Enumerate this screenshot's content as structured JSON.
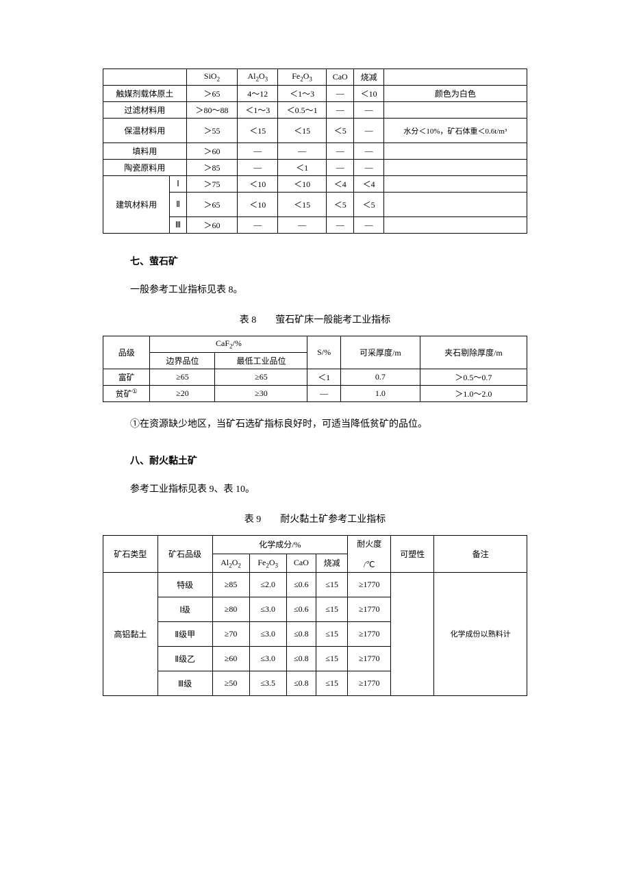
{
  "table7": {
    "header": [
      "SiO",
      "Al",
      "O",
      "Fe",
      "O",
      "CaO",
      "烧减"
    ],
    "sio2_sub": "2",
    "al2o3_a": "2",
    "al2o3_b": "3",
    "fe2o3_a": "2",
    "fe2o3_b": "3",
    "h_sio2": "SiO",
    "h_al2o3": "Al",
    "h_fe2o3": "Fe",
    "h_cao": "CaO",
    "h_shaojian": "烧减",
    "row1_label": "触媒剂载体原土",
    "r1_sio2": "＞65",
    "r1_al2o3": "4～12",
    "r1_fe2o3": "＜1～3",
    "r1_cao": "—",
    "r1_sj": "＜10",
    "r1_note": "颜色为白色",
    "row2_label": "过滤材料用",
    "r2_sio2": "＞80～88",
    "r2_al2o3": "＜1～3",
    "r2_fe2o3": "＜0.5～1",
    "r2_cao": "—",
    "r2_sj": "—",
    "r2_note": "",
    "row3_label": "保温材料用",
    "r3_sio2": "＞55",
    "r3_al2o3": "＜15",
    "r3_fe2o3": "＜15",
    "r3_cao": "＜5",
    "r3_sj": "—",
    "r3_note": "水分＜10%，矿石体重＜0.6t/m³",
    "row4_label": "填料用",
    "r4_sio2": "＞60",
    "r4_al2o3": "—",
    "r4_fe2o3": "—",
    "r4_cao": "—",
    "r4_sj": "—",
    "r4_note": "",
    "row5_label": "陶瓷原料用",
    "r5_sio2": "＞85",
    "r5_al2o3": "—",
    "r5_fe2o3": "＜1",
    "r5_cao": "—",
    "r5_sj": "—",
    "r5_note": "",
    "row6_label": "建筑材料用",
    "r6a_g": "Ⅰ",
    "r6a_sio2": "＞75",
    "r6a_al2o3": "＜10",
    "r6a_fe2o3": "＜10",
    "r6a_cao": "＜4",
    "r6a_sj": "＜4",
    "r6a_note": "",
    "r6b_g": "Ⅱ",
    "r6b_sio2": "＞65",
    "r6b_al2o3": "＜10",
    "r6b_fe2o3": "＜15",
    "r6b_cao": "＜5",
    "r6b_sj": "＜5",
    "r6b_note": "",
    "r6c_g": "Ⅲ",
    "r6c_sio2": "＞60",
    "r6c_al2o3": "—",
    "r6c_fe2o3": "—",
    "r6c_cao": "—",
    "r6c_sj": "—",
    "r6c_note": ""
  },
  "section7_heading": "七、萤石矿",
  "section7_body": "一般参考工业指标见表 8。",
  "table8_caption": "表 8　　萤石矿床一般能考工业指标",
  "table8": {
    "h_grade": "品级",
    "h_caf2": "CaF",
    "caf2_sub": "2",
    "h_pct": "/%",
    "h_bjpw": "边界品位",
    "h_zdpw": "最低工业品位",
    "h_s": "S/%",
    "h_kchd": "可采厚度/m",
    "h_jstchd": "夹石剔除厚度/m",
    "r1_g": "富矿",
    "r1_bj": "≥65",
    "r1_zd": "≥65",
    "r1_s": "＜1",
    "r1_kc": "0.7",
    "r1_js": "＞0.5～0.7",
    "r2_g": "贫矿",
    "r2_sup": "①",
    "r2_bj": "≥20",
    "r2_zd": "≥30",
    "r2_s": "—",
    "r2_kc": "1.0",
    "r2_js": "＞1.0～2.0"
  },
  "note1": "①在资源缺少地区，当矿石选矿指标良好时，可适当降低贫矿的品位。",
  "section8_heading": "八、耐火黏土矿",
  "section8_body": "参考工业指标见表 9、表 10。",
  "table9_caption": "表 9　　耐火黏土矿参考工业指标",
  "table9": {
    "h_type": "矿石类型",
    "h_grade": "矿石品级",
    "h_chem": "化学成分/%",
    "h_al2o2": "Al",
    "al2o2_a": "2",
    "al2o2_b": "2",
    "h_fe2o3": "Fe",
    "fe2o3_a": "2",
    "fe2o3_b": "3",
    "h_cao": "CaO",
    "h_sj": "烧减",
    "h_nhd": "耐火度",
    "h_nhd_unit": "/℃",
    "h_ksx": "可塑性",
    "h_bz": "备注",
    "type1": "高铝黏土",
    "bz1": "化学成份以熟料计",
    "g1": "特级",
    "g1_al": "≥85",
    "g1_fe": "≤2.0",
    "g1_ca": "≤0.6",
    "g1_sj": "≤15",
    "g1_nhd": "≥1770",
    "g2": "Ⅰ级",
    "g2_al": "≥80",
    "g2_fe": "≤3.0",
    "g2_ca": "≤0.6",
    "g2_sj": "≤15",
    "g2_nhd": "≥1770",
    "g3": "Ⅱ级甲",
    "g3_al": "≥70",
    "g3_fe": "≤3.0",
    "g3_ca": "≤0.8",
    "g3_sj": "≤15",
    "g3_nhd": "≥1770",
    "g4": "Ⅱ级乙",
    "g4_al": "≥60",
    "g4_fe": "≤3.0",
    "g4_ca": "≤0.8",
    "g4_sj": "≤15",
    "g4_nhd": "≥1770",
    "g5": "Ⅲ级",
    "g5_al": "≥50",
    "g5_fe": "≤3.5",
    "g5_ca": "≤0.8",
    "g5_sj": "≤15",
    "g5_nhd": "≥1770"
  }
}
